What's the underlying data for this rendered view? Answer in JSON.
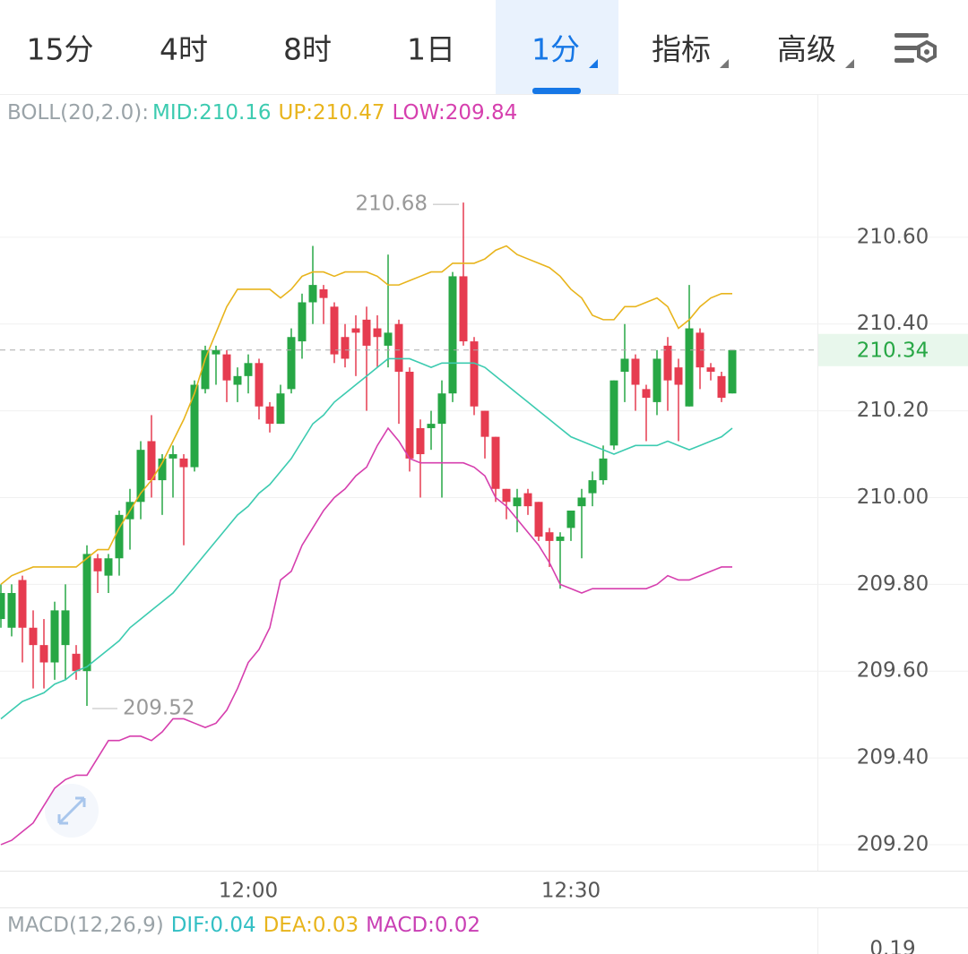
{
  "tabs": [
    "15分",
    "4时",
    "8时",
    "1日",
    "1分",
    "指标",
    "高级"
  ],
  "active_tab": 4,
  "chart_data": {
    "type": "candlestick",
    "indicator": "BOLL(20,2.0):",
    "categories": [
      null,
      null,
      null,
      null,
      null,
      null,
      null,
      null,
      null,
      null,
      null,
      null,
      null,
      null,
      null,
      null,
      null,
      null,
      null,
      null,
      null,
      null,
      null,
      "12:00",
      null,
      null,
      null,
      null,
      null,
      null,
      null,
      null,
      null,
      null,
      null,
      null,
      null,
      null,
      null,
      null,
      null,
      null,
      null,
      null,
      null,
      null,
      null,
      null,
      null,
      null,
      null,
      null,
      null,
      "12:30",
      null,
      null,
      null,
      null,
      null,
      null,
      null,
      null,
      null,
      null,
      null,
      null,
      null,
      null,
      null
    ],
    "open": [
      209.72,
      209.7,
      209.81,
      209.7,
      209.66,
      209.62,
      209.66,
      209.64,
      209.6,
      209.86,
      209.82,
      209.86,
      209.95,
      209.99,
      210.13,
      210.04,
      210.09,
      210.09,
      210.07,
      210.25,
      210.33,
      210.33,
      210.26,
      210.28,
      210.31,
      210.21,
      210.17,
      210.25,
      210.36,
      210.45,
      210.48,
      210.44,
      210.37,
      210.39,
      210.41,
      210.39,
      210.35,
      210.4,
      210.29,
      210.16,
      210.16,
      210.17,
      210.24,
      210.51,
      210.36,
      210.2,
      210.14,
      210.02,
      209.98,
      210.01,
      209.99,
      209.92,
      209.9,
      209.93,
      209.98,
      210.01,
      210.04,
      210.12,
      210.29,
      210.32,
      210.25,
      210.22,
      210.35,
      210.3,
      210.21,
      210.38,
      210.3,
      210.28,
      210.24
    ],
    "high": [
      209.8,
      209.8,
      209.82,
      209.74,
      209.72,
      209.76,
      209.8,
      209.66,
      209.89,
      209.87,
      209.87,
      209.97,
      210.02,
      210.13,
      210.19,
      210.1,
      210.12,
      210.1,
      210.27,
      210.35,
      210.35,
      210.34,
      210.3,
      210.33,
      210.32,
      210.22,
      210.26,
      210.39,
      210.47,
      210.58,
      210.49,
      210.45,
      210.4,
      210.42,
      210.44,
      210.42,
      210.56,
      210.41,
      210.3,
      210.18,
      210.2,
      210.27,
      210.52,
      210.68,
      210.37,
      210.2,
      210.14,
      210.02,
      210.02,
      210.02,
      209.99,
      209.93,
      209.92,
      209.97,
      210.02,
      210.06,
      210.12,
      210.27,
      210.4,
      210.33,
      210.26,
      210.34,
      210.37,
      210.32,
      210.49,
      210.39,
      210.31,
      210.29,
      210.34
    ],
    "low": [
      209.7,
      209.68,
      209.62,
      209.56,
      209.56,
      209.58,
      209.58,
      209.58,
      209.52,
      209.78,
      209.78,
      209.82,
      209.88,
      209.95,
      210.0,
      209.96,
      210.0,
      209.89,
      210.06,
      210.24,
      210.26,
      210.22,
      210.22,
      210.24,
      210.18,
      210.15,
      210.17,
      210.24,
      210.32,
      210.4,
      210.4,
      210.31,
      210.3,
      210.28,
      210.2,
      210.3,
      210.3,
      210.17,
      210.06,
      210.0,
      210.11,
      210.0,
      210.22,
      210.35,
      210.19,
      210.09,
      209.99,
      209.95,
      209.92,
      209.96,
      209.9,
      209.84,
      209.79,
      209.9,
      209.86,
      209.98,
      210.03,
      210.11,
      210.22,
      210.2,
      210.13,
      210.19,
      210.2,
      210.13,
      210.21,
      210.25,
      210.27,
      210.22,
      210.24
    ],
    "close": [
      209.78,
      209.78,
      209.7,
      209.66,
      209.62,
      209.74,
      209.74,
      209.6,
      209.87,
      209.83,
      209.86,
      209.96,
      209.99,
      210.11,
      210.04,
      210.09,
      210.1,
      210.07,
      210.26,
      210.34,
      210.34,
      210.27,
      210.28,
      210.31,
      210.21,
      210.17,
      210.24,
      210.37,
      210.45,
      210.49,
      210.46,
      210.33,
      210.32,
      210.38,
      210.35,
      210.37,
      210.38,
      210.29,
      210.09,
      210.1,
      210.17,
      210.24,
      210.51,
      210.36,
      210.21,
      210.14,
      210.02,
      209.99,
      210.0,
      209.98,
      209.91,
      209.9,
      209.91,
      209.97,
      210.0,
      210.04,
      210.09,
      210.27,
      210.32,
      210.26,
      210.23,
      210.32,
      210.27,
      210.26,
      210.39,
      210.3,
      210.29,
      210.23,
      210.34
    ],
    "up_color": "#27a745",
    "down_color": "#e63c50",
    "series": [
      {
        "name": "MID:",
        "color": "#3ccbb0",
        "values": [
          209.49,
          209.51,
          209.53,
          209.54,
          209.55,
          209.57,
          209.58,
          209.6,
          209.61,
          209.63,
          209.65,
          209.67,
          209.7,
          209.72,
          209.74,
          209.76,
          209.78,
          209.81,
          209.84,
          209.87,
          209.9,
          209.93,
          209.96,
          209.98,
          210.01,
          210.03,
          210.06,
          210.09,
          210.13,
          210.17,
          210.19,
          210.22,
          210.24,
          210.26,
          210.28,
          210.3,
          210.32,
          210.32,
          210.32,
          210.31,
          210.3,
          210.31,
          210.31,
          210.31,
          210.31,
          210.3,
          210.28,
          210.26,
          210.24,
          210.22,
          210.2,
          210.18,
          210.16,
          210.14,
          210.13,
          210.12,
          210.11,
          210.1,
          210.11,
          210.12,
          210.12,
          210.12,
          210.13,
          210.12,
          210.11,
          210.12,
          210.13,
          210.14,
          210.16
        ]
      },
      {
        "name": "UP:",
        "color": "#e8b41c",
        "values": [
          209.8,
          209.82,
          209.83,
          209.84,
          209.84,
          209.84,
          209.84,
          209.84,
          209.86,
          209.88,
          209.88,
          209.93,
          209.97,
          210.01,
          210.04,
          210.08,
          210.13,
          210.18,
          210.24,
          210.32,
          210.38,
          210.44,
          210.48,
          210.48,
          210.48,
          210.48,
          210.46,
          210.48,
          210.51,
          210.52,
          210.52,
          210.51,
          210.52,
          210.52,
          210.52,
          210.51,
          210.49,
          210.49,
          210.5,
          210.51,
          210.52,
          210.52,
          210.54,
          210.54,
          210.54,
          210.55,
          210.57,
          210.58,
          210.56,
          210.55,
          210.54,
          210.53,
          210.51,
          210.48,
          210.46,
          210.42,
          210.41,
          210.41,
          210.44,
          210.44,
          210.45,
          210.46,
          210.44,
          210.39,
          210.41,
          210.44,
          210.46,
          210.47,
          210.47
        ]
      },
      {
        "name": "LOW:",
        "color": "#d63fae",
        "values": [
          209.2,
          209.21,
          209.23,
          209.25,
          209.29,
          209.33,
          209.35,
          209.36,
          209.36,
          209.4,
          209.44,
          209.44,
          209.45,
          209.45,
          209.44,
          209.46,
          209.49,
          209.49,
          209.48,
          209.47,
          209.48,
          209.51,
          209.56,
          209.62,
          209.65,
          209.7,
          209.81,
          209.83,
          209.89,
          209.93,
          209.97,
          210.0,
          210.02,
          210.05,
          210.07,
          210.12,
          210.16,
          210.13,
          210.09,
          210.08,
          210.08,
          210.08,
          210.08,
          210.08,
          210.07,
          210.05,
          210.0,
          209.98,
          209.95,
          209.92,
          209.89,
          209.85,
          209.8,
          209.79,
          209.78,
          209.79,
          209.79,
          209.79,
          209.79,
          209.79,
          209.79,
          209.8,
          209.82,
          209.81,
          209.81,
          209.82,
          209.83,
          209.84,
          209.84
        ]
      }
    ],
    "ylim": [
      209.14,
      210.93
    ],
    "yticks": [
      {
        "value": 209.2,
        "label": "209.20"
      },
      {
        "value": 209.4,
        "label": "209.40"
      },
      {
        "value": 209.6,
        "label": "209.60"
      },
      {
        "value": 209.8,
        "label": "209.80"
      },
      {
        "value": 210.0,
        "label": "210.00"
      },
      {
        "value": 210.2,
        "label": "210.20"
      },
      {
        "value": 210.4,
        "label": "210.40"
      },
      {
        "value": 210.6,
        "label": "210.60"
      }
    ],
    "grid": true,
    "macd": {
      "title": "MACD(12,26,9)",
      "items": [
        {
          "name": "DIF:",
          "value": 0.04,
          "color": "#33bfc4"
        },
        {
          "name": "DEA:",
          "value": 0.03,
          "color": "#e8b41c"
        },
        {
          "name": "MACD:",
          "value": 0.02,
          "color": "#c93fb4"
        }
      ],
      "tick": 0.19
    }
  }
}
